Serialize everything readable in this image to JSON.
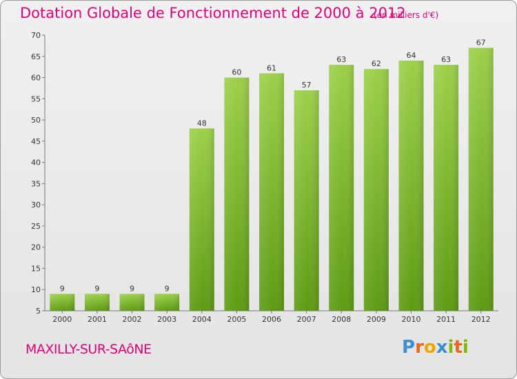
{
  "title": "Dotation Globale de Fonctionnement de 2000 à 2012",
  "subtitle": "(en milliers d'€)",
  "commune": "MAXILLY-SUR-SAôNE",
  "logo": {
    "letters": [
      "P",
      "r",
      "o",
      "x",
      "i",
      "t",
      "i"
    ],
    "colors": [
      "#3a8fd1",
      "#e8661d",
      "#f0a500",
      "#3a8fd1",
      "#7fb800",
      "#e8661d",
      "#7fb800"
    ]
  },
  "colors": {
    "bar_top": "#9cd04a",
    "bar_bottom": "#5e9a14",
    "title": "#e0007a"
  },
  "chart_data": {
    "type": "bar",
    "categories": [
      "2000",
      "2001",
      "2002",
      "2003",
      "2004",
      "2005",
      "2006",
      "2007",
      "2008",
      "2009",
      "2010",
      "2011",
      "2012"
    ],
    "values": [
      9,
      9,
      9,
      9,
      48,
      60,
      61,
      57,
      63,
      62,
      64,
      63,
      67
    ],
    "title": "Dotation Globale de Fonctionnement de 2000 à 2012",
    "subtitle": "(en milliers d'€)",
    "xlabel": "",
    "ylabel": "",
    "ylim": [
      5,
      70
    ],
    "yticks": [
      5,
      10,
      15,
      20,
      25,
      30,
      35,
      40,
      45,
      50,
      55,
      60,
      65,
      70
    ],
    "grid": false,
    "legend": "none"
  }
}
